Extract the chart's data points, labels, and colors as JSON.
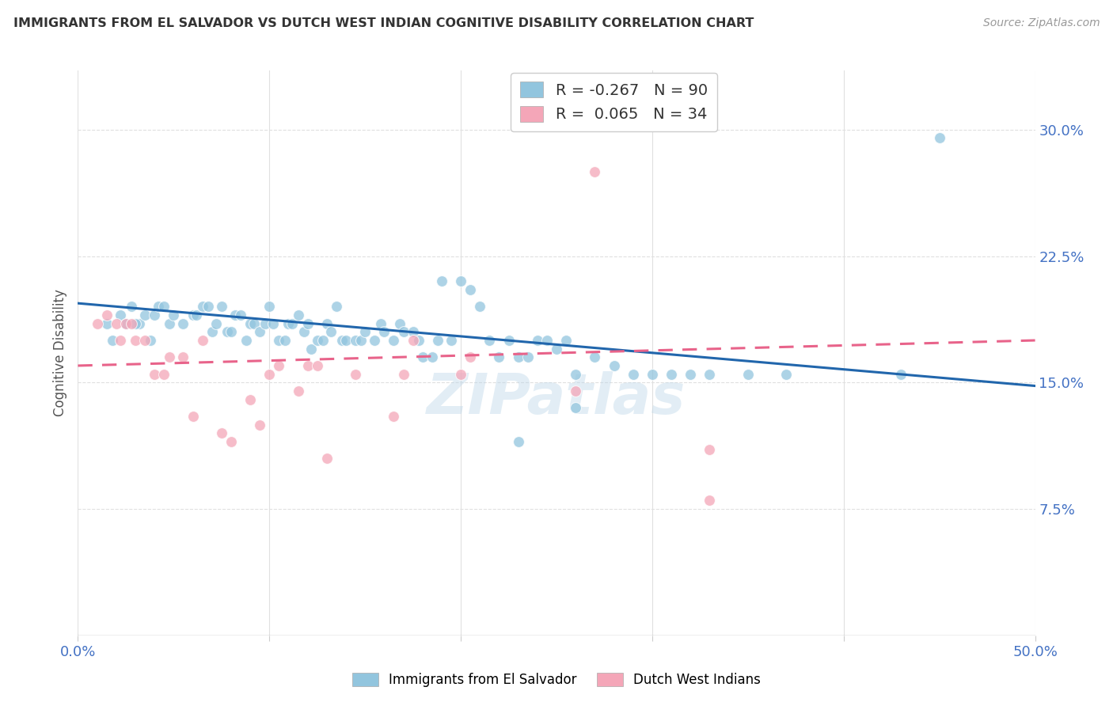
{
  "title": "IMMIGRANTS FROM EL SALVADOR VS DUTCH WEST INDIAN COGNITIVE DISABILITY CORRELATION CHART",
  "source": "Source: ZipAtlas.com",
  "ylabel": "Cognitive Disability",
  "yticks": [
    0.075,
    0.15,
    0.225,
    0.3
  ],
  "ytick_labels": [
    "7.5%",
    "15.0%",
    "22.5%",
    "30.0%"
  ],
  "xlim": [
    0.0,
    0.5
  ],
  "ylim": [
    0.0,
    0.335
  ],
  "legend_r1": "R = -0.267",
  "legend_n1": "N = 90",
  "legend_r2": "R =  0.065",
  "legend_n2": "N = 34",
  "color_blue": "#92c5de",
  "color_pink": "#f4a6b8",
  "color_blue_line": "#2166ac",
  "color_pink_line": "#e8638a",
  "color_ytick": "#4472C4",
  "color_xtick": "#4472C4",
  "watermark": "ZIPatlas",
  "blue_scatter_x": [
    0.028,
    0.032,
    0.015,
    0.018,
    0.022,
    0.025,
    0.03,
    0.035,
    0.038,
    0.04,
    0.042,
    0.045,
    0.048,
    0.05,
    0.055,
    0.06,
    0.062,
    0.065,
    0.068,
    0.07,
    0.072,
    0.075,
    0.078,
    0.08,
    0.082,
    0.085,
    0.088,
    0.09,
    0.092,
    0.095,
    0.098,
    0.1,
    0.102,
    0.105,
    0.108,
    0.11,
    0.112,
    0.115,
    0.118,
    0.12,
    0.122,
    0.125,
    0.128,
    0.13,
    0.132,
    0.135,
    0.138,
    0.14,
    0.145,
    0.148,
    0.15,
    0.155,
    0.158,
    0.16,
    0.165,
    0.168,
    0.17,
    0.175,
    0.178,
    0.18,
    0.185,
    0.188,
    0.19,
    0.195,
    0.2,
    0.205,
    0.21,
    0.215,
    0.22,
    0.225,
    0.23,
    0.235,
    0.24,
    0.245,
    0.25,
    0.255,
    0.26,
    0.27,
    0.28,
    0.29,
    0.3,
    0.31,
    0.32,
    0.33,
    0.35,
    0.37,
    0.26,
    0.23,
    0.43,
    0.45
  ],
  "blue_scatter_y": [
    0.195,
    0.185,
    0.185,
    0.175,
    0.19,
    0.185,
    0.185,
    0.19,
    0.175,
    0.19,
    0.195,
    0.195,
    0.185,
    0.19,
    0.185,
    0.19,
    0.19,
    0.195,
    0.195,
    0.18,
    0.185,
    0.195,
    0.18,
    0.18,
    0.19,
    0.19,
    0.175,
    0.185,
    0.185,
    0.18,
    0.185,
    0.195,
    0.185,
    0.175,
    0.175,
    0.185,
    0.185,
    0.19,
    0.18,
    0.185,
    0.17,
    0.175,
    0.175,
    0.185,
    0.18,
    0.195,
    0.175,
    0.175,
    0.175,
    0.175,
    0.18,
    0.175,
    0.185,
    0.18,
    0.175,
    0.185,
    0.18,
    0.18,
    0.175,
    0.165,
    0.165,
    0.175,
    0.21,
    0.175,
    0.21,
    0.205,
    0.195,
    0.175,
    0.165,
    0.175,
    0.165,
    0.165,
    0.175,
    0.175,
    0.17,
    0.175,
    0.155,
    0.165,
    0.16,
    0.155,
    0.155,
    0.155,
    0.155,
    0.155,
    0.155,
    0.155,
    0.135,
    0.115,
    0.155,
    0.295
  ],
  "pink_scatter_x": [
    0.01,
    0.015,
    0.02,
    0.022,
    0.025,
    0.028,
    0.03,
    0.035,
    0.04,
    0.045,
    0.048,
    0.055,
    0.06,
    0.065,
    0.075,
    0.08,
    0.09,
    0.095,
    0.1,
    0.105,
    0.115,
    0.12,
    0.125,
    0.13,
    0.145,
    0.165,
    0.17,
    0.175,
    0.2,
    0.205,
    0.26,
    0.27,
    0.33,
    0.33
  ],
  "pink_scatter_y": [
    0.185,
    0.19,
    0.185,
    0.175,
    0.185,
    0.185,
    0.175,
    0.175,
    0.155,
    0.155,
    0.165,
    0.165,
    0.13,
    0.175,
    0.12,
    0.115,
    0.14,
    0.125,
    0.155,
    0.16,
    0.145,
    0.16,
    0.16,
    0.105,
    0.155,
    0.13,
    0.155,
    0.175,
    0.155,
    0.165,
    0.145,
    0.275,
    0.08,
    0.11
  ],
  "blue_trend_x": [
    0.0,
    0.5
  ],
  "blue_trend_y": [
    0.197,
    0.148
  ],
  "pink_trend_x": [
    0.0,
    0.5
  ],
  "pink_trend_y": [
    0.16,
    0.175
  ],
  "grid_color": "#e0e0e0",
  "xtick_positions": [
    0.0,
    0.1,
    0.2,
    0.3,
    0.4,
    0.5
  ]
}
